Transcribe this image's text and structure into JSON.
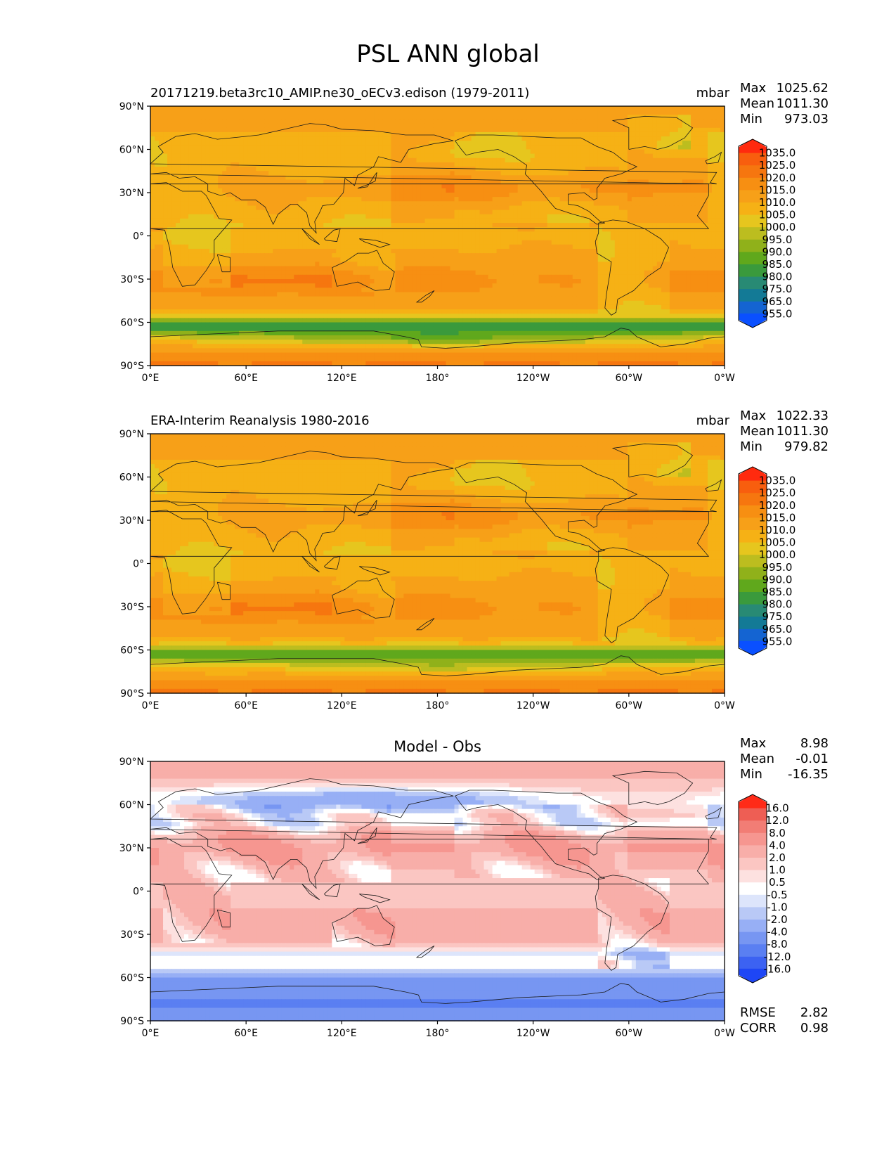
{
  "suptitle": "PSL ANN global",
  "colors": {
    "psl": [
      "#0a50ff",
      "#1464d2",
      "#137a96",
      "#288a74",
      "#3a9a3c",
      "#60a81c",
      "#90b11a",
      "#bcbd1f",
      "#e6c61e",
      "#f6b115",
      "#f7a018",
      "#f78f12",
      "#f6760f",
      "#f85e0e",
      "#ff2a0e"
    ],
    "diff": [
      "#1e46f5",
      "#3c62f2",
      "#5a7ff2",
      "#7796f2",
      "#97aff5",
      "#b9c9f6",
      "#dde5fb",
      "#ffffff",
      "#fde1e0",
      "#fbc6c2",
      "#f8aea9",
      "#f69690",
      "#f27d75",
      "#ee5e54",
      "#ff2b18"
    ]
  },
  "chart_data": [
    {
      "type": "heatmap",
      "title": "20171219.beta3rc10_AMIP.ne30_oECv3.edison (1979-2011)",
      "units": "mbar",
      "stats": [
        {
          "label": "Max",
          "value": "1025.62"
        },
        {
          "label": "Mean",
          "value": "1011.30"
        },
        {
          "label": "Min",
          "value": "973.03"
        }
      ],
      "x_ticks": [
        "0°E",
        "60°E",
        "120°E",
        "180°",
        "120°W",
        "60°W",
        "0°W"
      ],
      "y_ticks": [
        "90°N",
        "60°N",
        "30°N",
        "0°",
        "30°S",
        "60°S",
        "90°S"
      ],
      "colorbar_levels": [
        "1035.0",
        "1025.0",
        "1020.0",
        "1015.0",
        "1010.0",
        "1005.0",
        "1000.0",
        "995.0",
        "990.0",
        "985.0",
        "980.0",
        "975.0",
        "965.0",
        "955.0"
      ],
      "extremes": {
        "min": 973.03,
        "max": 1025.62
      },
      "palette": "psl",
      "lon_range": [
        0,
        360
      ],
      "lat_range": [
        -90,
        90
      ]
    },
    {
      "type": "heatmap",
      "title": "ERA-Interim Reanalysis 1980-2016",
      "units": "mbar",
      "stats": [
        {
          "label": "Max",
          "value": "1022.33"
        },
        {
          "label": "Mean",
          "value": "1011.30"
        },
        {
          "label": "Min",
          "value": "979.82"
        }
      ],
      "x_ticks": [
        "0°E",
        "60°E",
        "120°E",
        "180°",
        "120°W",
        "60°W",
        "0°W"
      ],
      "y_ticks": [
        "90°N",
        "60°N",
        "30°N",
        "0°",
        "30°S",
        "60°S",
        "90°S"
      ],
      "colorbar_levels": [
        "1035.0",
        "1025.0",
        "1020.0",
        "1015.0",
        "1010.0",
        "1005.0",
        "1000.0",
        "995.0",
        "990.0",
        "985.0",
        "980.0",
        "975.0",
        "965.0",
        "955.0"
      ],
      "extremes": {
        "min": 979.82,
        "max": 1022.33
      },
      "palette": "psl",
      "lon_range": [
        0,
        360
      ],
      "lat_range": [
        -90,
        90
      ]
    },
    {
      "type": "heatmap",
      "title": "Model - Obs",
      "units": "",
      "stats": [
        {
          "label": "Max",
          "value": "8.98"
        },
        {
          "label": "Mean",
          "value": "-0.01"
        },
        {
          "label": "Min",
          "value": "-16.35"
        }
      ],
      "extra_stats": [
        {
          "label": "RMSE",
          "value": "2.82"
        },
        {
          "label": "CORR",
          "value": "0.98"
        }
      ],
      "x_ticks": [
        "0°E",
        "60°E",
        "120°E",
        "180°",
        "120°W",
        "60°W",
        "0°W"
      ],
      "y_ticks": [
        "90°N",
        "60°N",
        "30°N",
        "0°",
        "30°S",
        "60°S",
        "90°S"
      ],
      "colorbar_levels": [
        "16.0",
        "12.0",
        "8.0",
        "4.0",
        "2.0",
        "1.0",
        "0.5",
        "-0.5",
        "-1.0",
        "-2.0",
        "-4.0",
        "-8.0",
        "-12.0",
        "-16.0"
      ],
      "extremes": {
        "min": -16.35,
        "max": 8.98
      },
      "palette": "diff",
      "lon_range": [
        0,
        360
      ],
      "lat_range": [
        -90,
        90
      ]
    }
  ]
}
